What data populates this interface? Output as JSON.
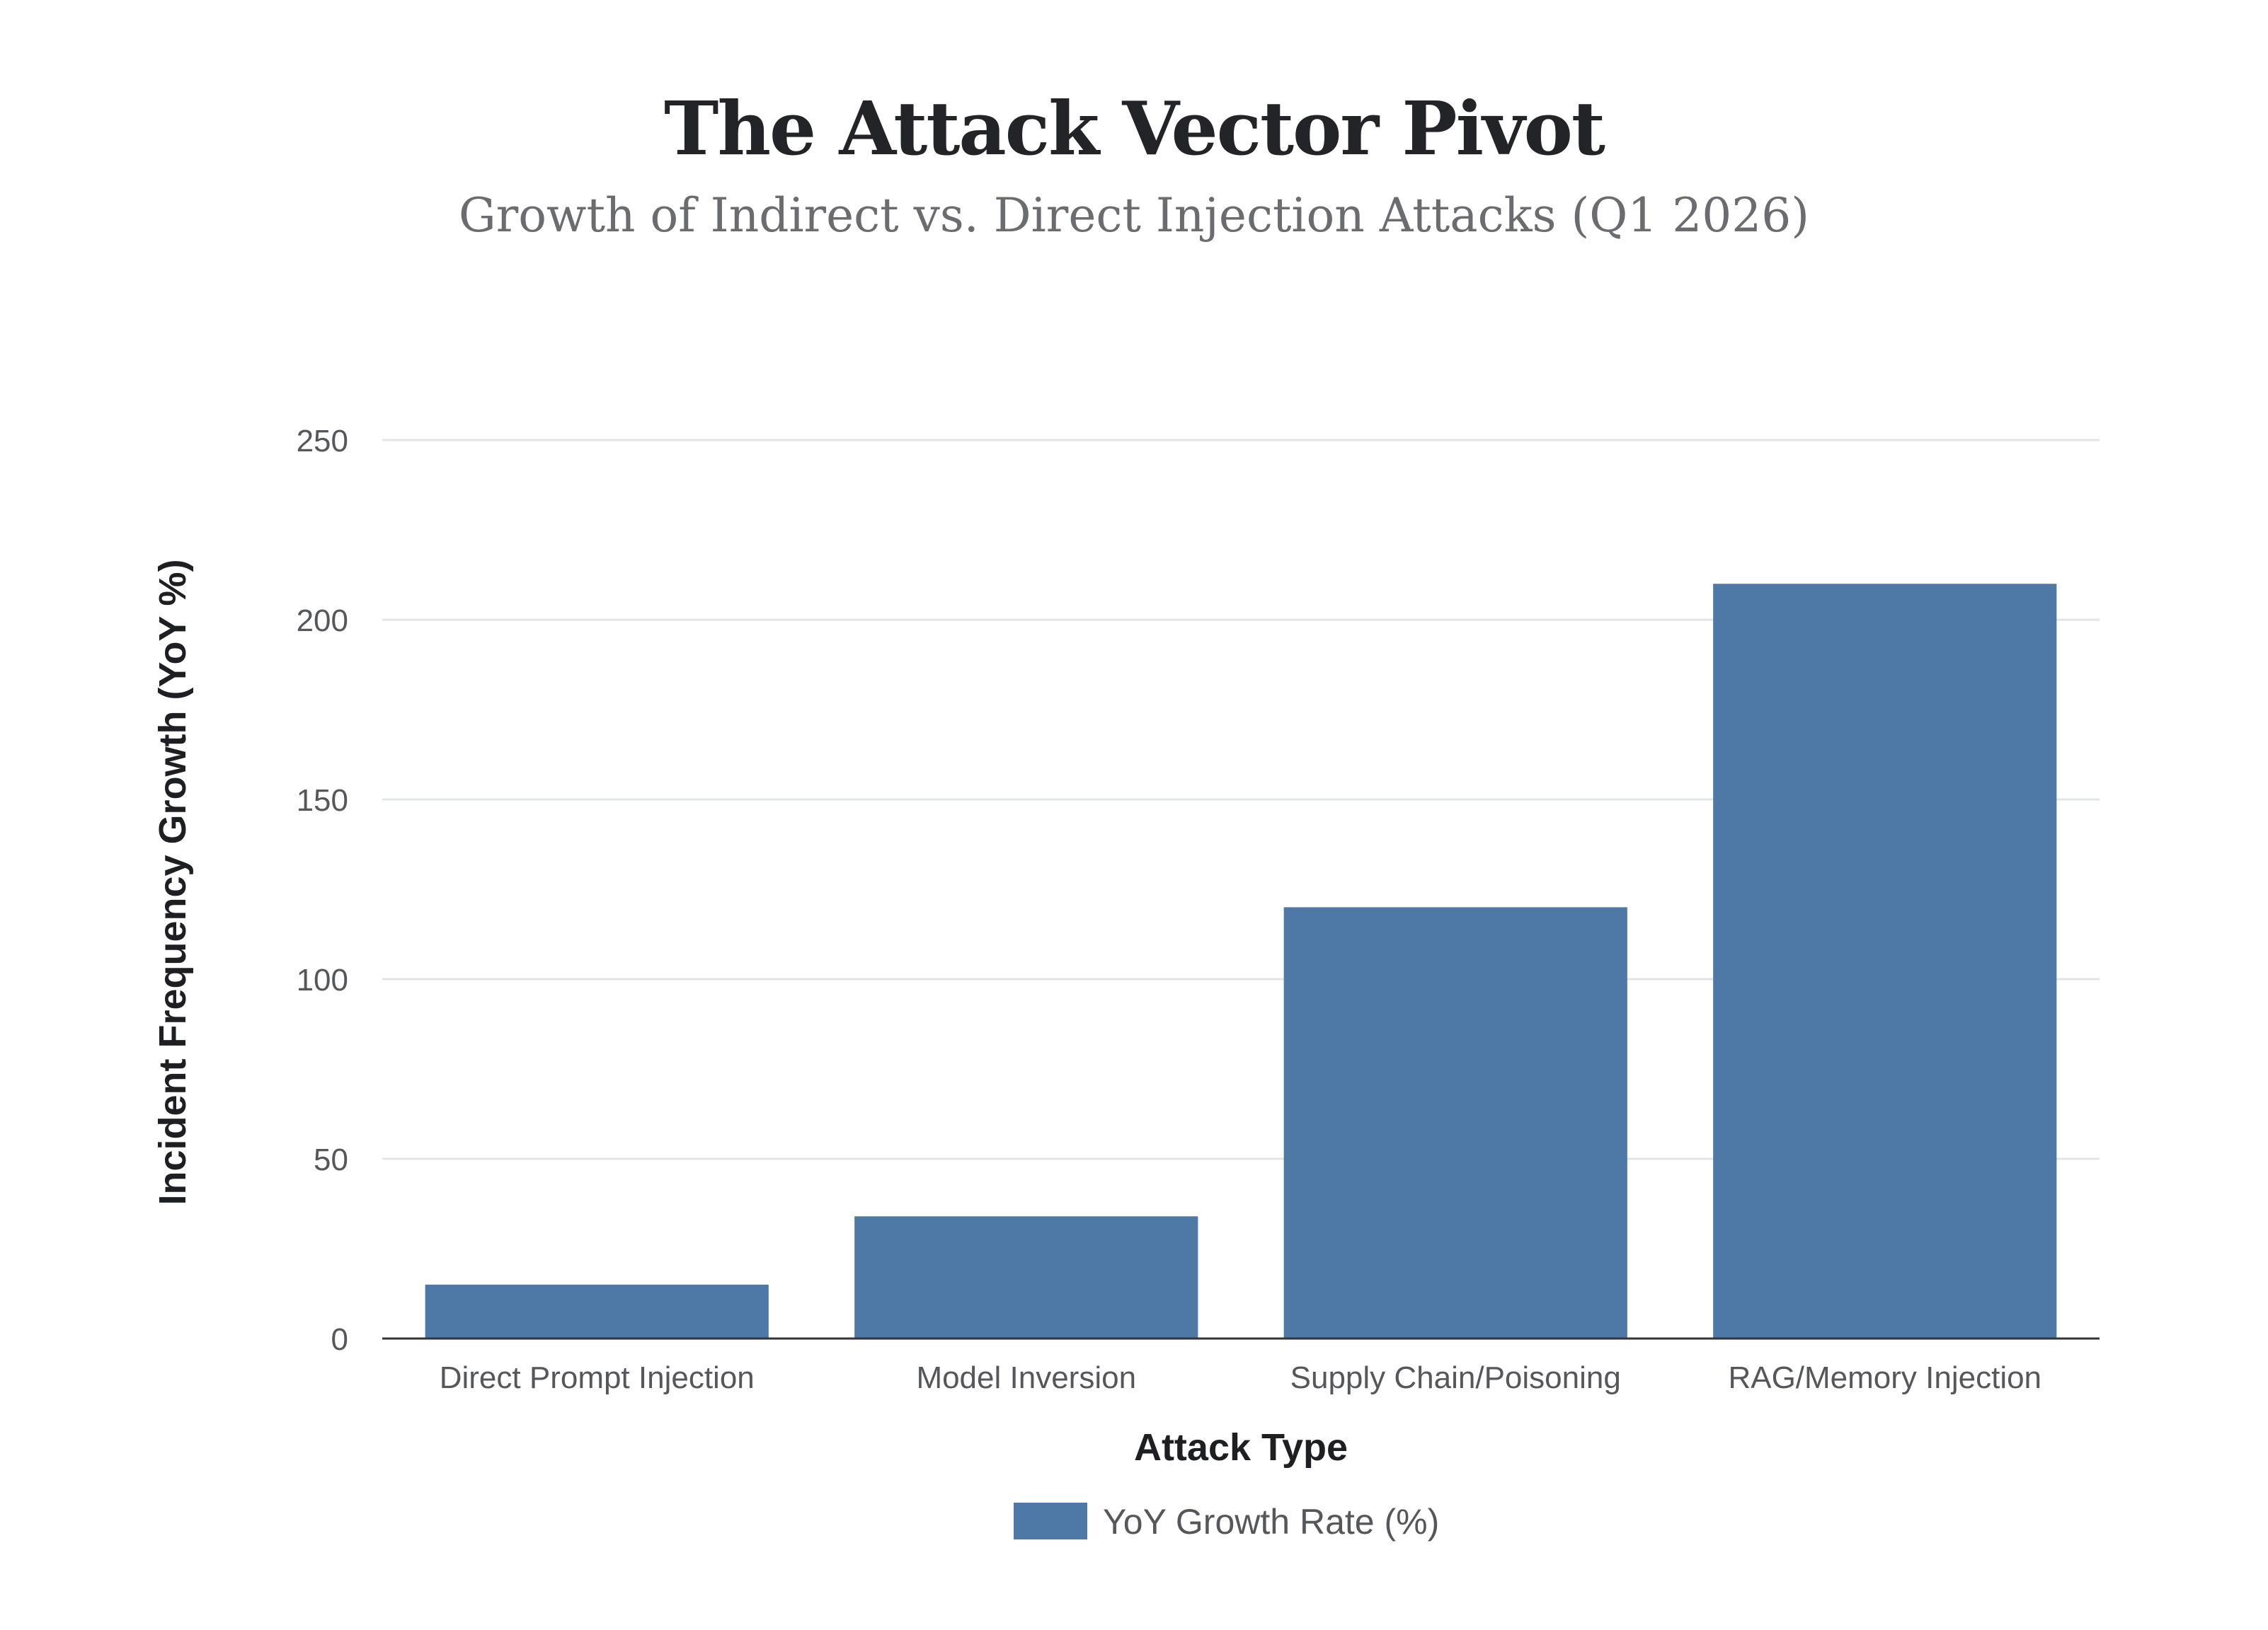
{
  "header": {
    "title": "The Attack Vector Pivot",
    "subtitle": "Growth of Indirect vs. Direct Injection Attacks (Q1 2026)"
  },
  "chart_data": {
    "type": "bar",
    "title": "The Attack Vector Pivot",
    "subtitle": "Growth of Indirect vs. Direct Injection Attacks (Q1 2026)",
    "xlabel": "Attack Type",
    "ylabel": "Incident Frequency Growth (YoY %)",
    "categories": [
      "Direct Prompt Injection",
      "Model Inversion",
      "Supply Chain/Poisoning",
      "RAG/Memory Injection"
    ],
    "series": [
      {
        "name": "YoY Growth Rate (%)",
        "values": [
          15,
          34,
          120,
          210
        ],
        "color": "#4e78a6"
      }
    ],
    "ylim": [
      0,
      250
    ],
    "yticks": [
      0,
      50,
      100,
      150,
      200,
      250
    ],
    "grid": true,
    "legend": "bottom-center"
  }
}
